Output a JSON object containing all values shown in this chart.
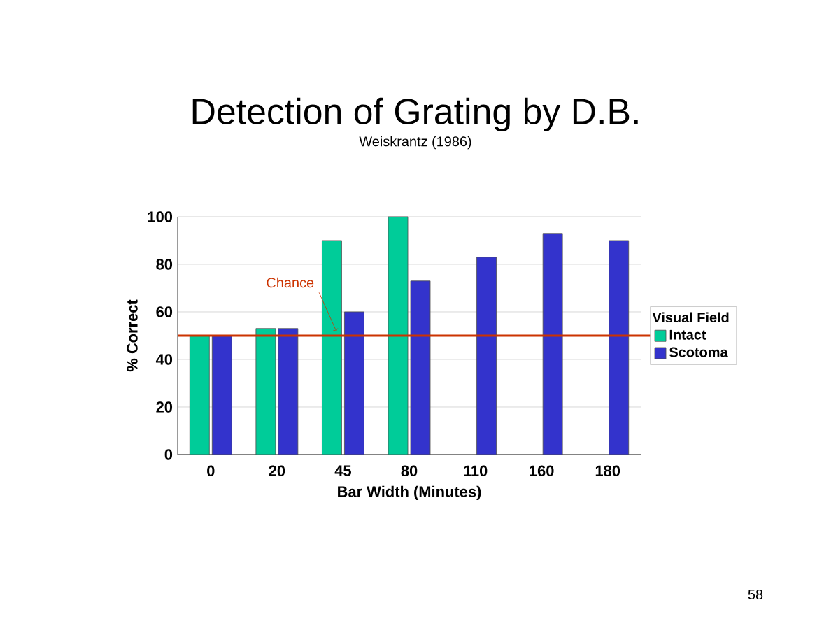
{
  "chart_data": {
    "type": "bar",
    "title": "Detection of Grating by D.B.",
    "subtitle": "Weiskrantz (1986)",
    "xlabel": "Bar Width (Minutes)",
    "ylabel": "% Correct",
    "legend_title": "Visual Field",
    "categories": [
      "0",
      "20",
      "45",
      "80",
      "110",
      "160",
      "180"
    ],
    "series": [
      {
        "name": "Intact",
        "color": "#00cc99",
        "values": [
          50,
          53,
          90,
          100,
          null,
          null,
          null
        ]
      },
      {
        "name": "Scotoma",
        "color": "#3333cc",
        "values": [
          50,
          53,
          60,
          73,
          83,
          93,
          90
        ]
      }
    ],
    "ylim": [
      0,
      100
    ],
    "yticks": [
      0,
      20,
      40,
      60,
      80,
      100
    ],
    "grid": "y",
    "legend": "right",
    "ref_lines": [
      {
        "axis": "y",
        "value": 50,
        "label": "Chance",
        "color": "#cc3300"
      }
    ],
    "annotations": [
      "58"
    ]
  }
}
